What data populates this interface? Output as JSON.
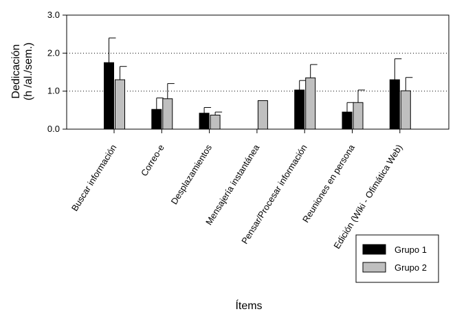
{
  "chart_data": {
    "type": "bar",
    "xlabel": "Ítems",
    "ylabel_lines": [
      "Dedicación",
      "(h /al./sem.)"
    ],
    "ylim": [
      0,
      3
    ],
    "yticks": [
      "0.0",
      "1.0",
      "2.0",
      "3.0"
    ],
    "ytick_values": [
      0,
      1,
      2,
      3
    ],
    "grid": "dotted horizontal at 1.0 and 2.0",
    "legend_position": "bottom-right",
    "categories": [
      "Buscar información",
      "Correo-e",
      "Desplazamientos",
      "Mensajería instantánea",
      "Pensar/Procesar información",
      "Reuniones en persona",
      "Edición (Wiki - Ofimática Web)"
    ],
    "series": [
      {
        "name": "Grupo 1",
        "color": "#000000",
        "values": [
          1.75,
          0.52,
          0.42,
          null,
          1.03,
          0.45,
          1.3
        ],
        "errors": [
          0.65,
          0.3,
          0.15,
          null,
          0.25,
          0.25,
          0.55
        ]
      },
      {
        "name": "Grupo 2",
        "color": "#bfbfbf",
        "values": [
          1.3,
          0.8,
          0.37,
          0.75,
          1.35,
          0.7,
          1.01
        ],
        "errors": [
          0.35,
          0.4,
          0.08,
          null,
          0.35,
          0.33,
          0.35
        ]
      }
    ]
  }
}
